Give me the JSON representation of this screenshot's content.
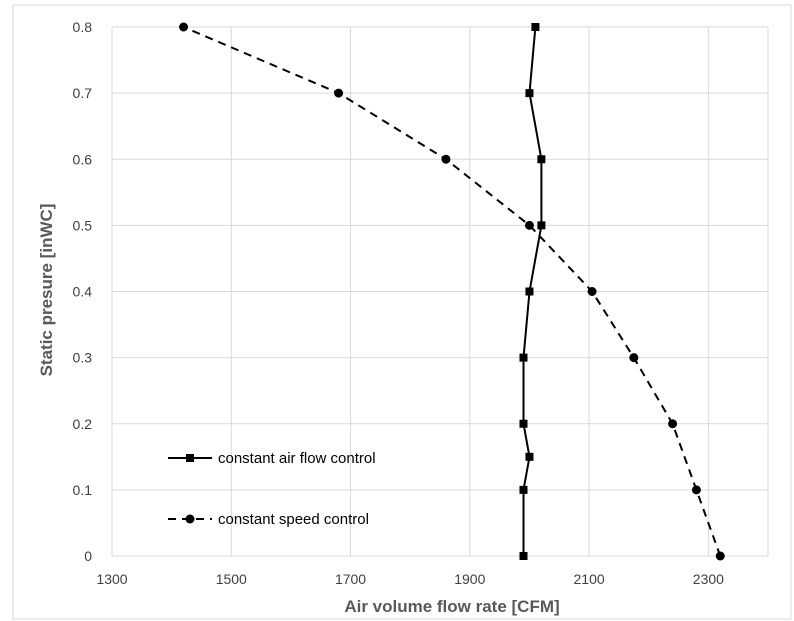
{
  "chart_data": {
    "type": "scatter",
    "title": "",
    "xlabel": "Air volume flow rate [CFM]",
    "ylabel": "Static presure [inWC]",
    "xlim": [
      1300,
      2400
    ],
    "ylim": [
      0,
      0.8
    ],
    "x_ticks": [
      "1300",
      "1500",
      "1700",
      "1900",
      "2100",
      "2300"
    ],
    "y_ticks": [
      "0",
      "0.1",
      "0.2",
      "0.3",
      "0.4",
      "0.5",
      "0.6",
      "0.7",
      "0.8"
    ],
    "grid": true,
    "legend_position": "bottom-left",
    "series": [
      {
        "name": "constant air flow control",
        "marker": "square",
        "line_style": "solid",
        "color": "#000000",
        "points": [
          {
            "x": 1990,
            "y": 0
          },
          {
            "x": 1990,
            "y": 0.1
          },
          {
            "x": 2000,
            "y": 0.15
          },
          {
            "x": 1990,
            "y": 0.2
          },
          {
            "x": 1990,
            "y": 0.3
          },
          {
            "x": 2000,
            "y": 0.4
          },
          {
            "x": 2020,
            "y": 0.5
          },
          {
            "x": 2020,
            "y": 0.6
          },
          {
            "x": 2000,
            "y": 0.7
          },
          {
            "x": 2010,
            "y": 0.8
          }
        ]
      },
      {
        "name": "constant speed control",
        "marker": "circle",
        "line_style": "dashed",
        "color": "#000000",
        "points": [
          {
            "x": 2320,
            "y": 0
          },
          {
            "x": 2280,
            "y": 0.1
          },
          {
            "x": 2240,
            "y": 0.2
          },
          {
            "x": 2175,
            "y": 0.3
          },
          {
            "x": 2105,
            "y": 0.4
          },
          {
            "x": 2000,
            "y": 0.5
          },
          {
            "x": 1860,
            "y": 0.6
          },
          {
            "x": 1680,
            "y": 0.7
          },
          {
            "x": 1420,
            "y": 0.8
          }
        ]
      }
    ]
  }
}
